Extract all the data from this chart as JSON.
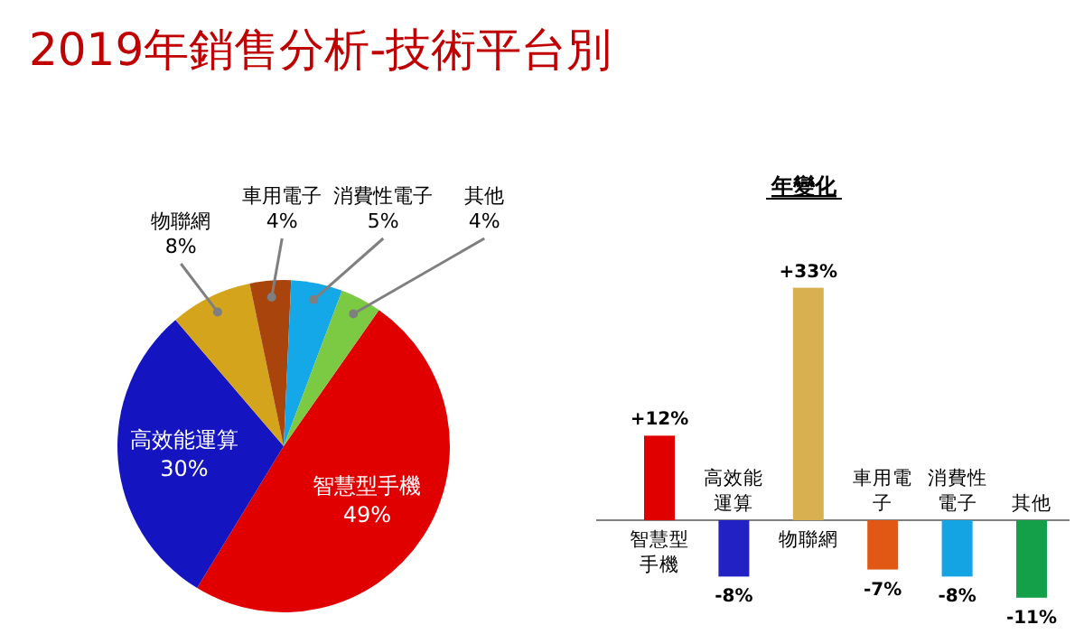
{
  "chart_data": [
    {
      "type": "pie",
      "title": "2019年銷售分析-技術平台別",
      "categories": [
        "智慧型手機",
        "高效能運算",
        "物聯網",
        "車用電子",
        "消費性電子",
        "其他"
      ],
      "values": [
        49,
        30,
        8,
        4,
        5,
        4
      ],
      "colors": [
        "#e00000",
        "#1414c0",
        "#d4a51c",
        "#a8440c",
        "#14a8e8",
        "#7cc943"
      ],
      "value_labels": [
        "49%",
        "30%",
        "8%",
        "4%",
        "5%",
        "4%"
      ]
    },
    {
      "type": "bar",
      "title": "年變化",
      "categories": [
        "智慧型手機",
        "高效能運算",
        "物聯網",
        "車用電子",
        "消費性電子",
        "其他"
      ],
      "values": [
        12,
        -8,
        33,
        -7,
        -8,
        -11
      ],
      "value_labels": [
        "+12%",
        "-8%",
        "+33%",
        "-7%",
        "-8%",
        "-11%"
      ],
      "colors": [
        "#e00000",
        "#2222c4",
        "#d8b050",
        "#e05814",
        "#14a4e4",
        "#14a048"
      ]
    }
  ]
}
